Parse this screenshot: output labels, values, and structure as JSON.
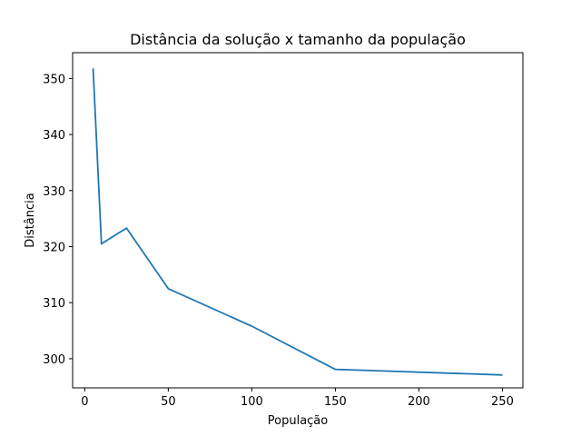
{
  "chart_data": {
    "type": "line",
    "title": "Distância da solução x tamanho da população",
    "xlabel": "População",
    "ylabel": "Distância",
    "xlim": [
      -7.25,
      262.25
    ],
    "ylim": [
      294.8,
      354.6
    ],
    "xticks": [
      0,
      50,
      100,
      150,
      200,
      250
    ],
    "yticks": [
      300,
      310,
      320,
      330,
      340,
      350
    ],
    "grid": false,
    "color": "#1f77b4",
    "series": [
      {
        "x": [
          5,
          10,
          25,
          50,
          100,
          150,
          250
        ],
        "values": [
          351.8,
          320.5,
          323.3,
          312.5,
          305.8,
          298.1,
          297.1
        ]
      }
    ]
  }
}
